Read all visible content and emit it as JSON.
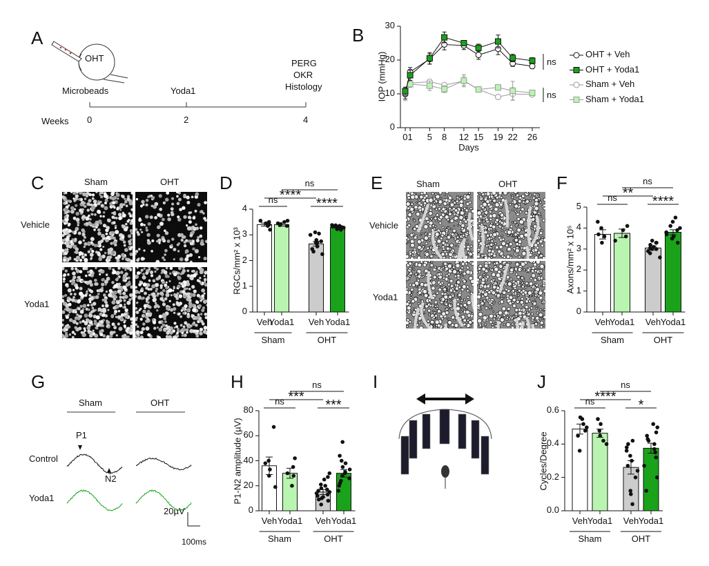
{
  "panels": {
    "A": "A",
    "B": "B",
    "C": "C",
    "D": "D",
    "E": "E",
    "F": "F",
    "G": "G",
    "H": "H",
    "I": "I",
    "J": "J"
  },
  "timeline": {
    "eye_label": "OHT",
    "events": [
      "Microbeads",
      "Yoda1"
    ],
    "endpoints": [
      "PERG",
      "OKR",
      "Histology"
    ],
    "axis_label": "Weeks",
    "ticks": [
      "0",
      "2",
      "4"
    ]
  },
  "micro_c": {
    "cols": [
      "Sham",
      "OHT"
    ],
    "rows": [
      "Vehicle",
      "Yoda1"
    ]
  },
  "micro_e": {
    "cols": [
      "Sham",
      "OHT"
    ],
    "rows": [
      "Vehicle",
      "Yoda1"
    ]
  },
  "perg": {
    "cols": [
      "Sham",
      "OHT"
    ],
    "rows": [
      "Control",
      "Yoda1"
    ],
    "p1": "P1",
    "n2": "N2",
    "scale_v": "20µV",
    "scale_t": "100ms"
  },
  "colors": {
    "black": "#111111",
    "green": "#1aa31a",
    "light_green": "#b9f5b0",
    "gray": "#cccccc"
  },
  "chart_data": [
    {
      "id": "B",
      "type": "line",
      "ylabel": "IOP (mmHg)",
      "xlabel": "Days",
      "ylim": [
        0,
        30
      ],
      "yticks": [
        "0",
        "10",
        "20",
        "30"
      ],
      "xticks": [
        "01",
        "5",
        "8",
        "12",
        "15",
        "19",
        "22",
        "26"
      ],
      "x": [
        0,
        1,
        5,
        8,
        12,
        15,
        19,
        22,
        26
      ],
      "series": [
        {
          "name": "OHT + Veh",
          "marker": "circle",
          "color": "#111111",
          "fill": "#ffffff",
          "values": [
            10,
            16.5,
            20.3,
            24.6,
            24.3,
            21.5,
            23.3,
            19,
            18.2
          ],
          "err": [
            1.5,
            1.3,
            1.5,
            1.6,
            1.2,
            1.3,
            1.7,
            0.9,
            0.7
          ]
        },
        {
          "name": "OHT + Yoda1",
          "marker": "square",
          "color": "#111111",
          "fill": "#1aa31a",
          "values": [
            10.8,
            15.5,
            20.5,
            26.7,
            25,
            23.6,
            25.5,
            20.6,
            19.8
          ],
          "err": [
            1.2,
            1.5,
            1.7,
            1.6,
            0.8,
            1.1,
            1.9,
            1.1,
            0.9
          ]
        },
        {
          "name": "Sham + Veh",
          "marker": "circle",
          "color": "#999999",
          "fill": "#ffffff",
          "values": [
            9.8,
            13.2,
            13.6,
            12.6,
            13.8,
            11.3,
            9.1,
            10,
            9.8
          ],
          "err": [
            1.8,
            0.6,
            0.4,
            0.6,
            1.3,
            0.6,
            0.5,
            1.8,
            0.5
          ]
        },
        {
          "name": "Sham + Yoda1",
          "marker": "square",
          "color": "#999999",
          "fill": "#b9f5b0",
          "values": [
            10.5,
            12.9,
            12.4,
            11.4,
            13.9,
            11.3,
            11.9,
            10.9,
            10.3
          ],
          "err": [
            1.3,
            1,
            1.4,
            1,
            1.8,
            0.7,
            0.7,
            2.8,
            0.6
          ]
        }
      ],
      "annotations": [
        "ns",
        "ns"
      ]
    },
    {
      "id": "D",
      "type": "bar",
      "ylabel": "RGCs/mm² x 10³",
      "ylim": [
        0,
        4
      ],
      "yticks": [
        "0",
        "1",
        "2",
        "3",
        "4"
      ],
      "categories": [
        "Veh",
        "Yoda1",
        "Veh",
        "Yoda1"
      ],
      "groups": [
        "Sham",
        "OHT"
      ],
      "values": [
        3.4,
        3.4,
        2.65,
        3.3
      ],
      "err": [
        0.06,
        0.06,
        0.09,
        0.03
      ],
      "points": [
        [
          3.2,
          3.35,
          3.4,
          3.45,
          3.5,
          3.55
        ],
        [
          3.35,
          3.38,
          3.42,
          3.45,
          3.5,
          3.55
        ],
        [
          2.25,
          2.35,
          2.45,
          2.55,
          2.65,
          2.7,
          2.7,
          2.75,
          2.8,
          3.0,
          3.05,
          3.1
        ],
        [
          3.2,
          3.22,
          3.25,
          3.28,
          3.3,
          3.3,
          3.32,
          3.33,
          3.35,
          3.35,
          3.37,
          3.38
        ]
      ],
      "comparisons": [
        {
          "a": 0,
          "b": 1,
          "label": "ns",
          "level": 0
        },
        {
          "a": 0,
          "b": 2,
          "label": "****",
          "level": 1
        },
        {
          "a": 2,
          "b": 3,
          "label": "****",
          "level": 0
        },
        {
          "a": 1,
          "b": 3,
          "label": "ns",
          "level": 2
        }
      ]
    },
    {
      "id": "F",
      "type": "bar",
      "ylabel": "Axons/mm² x 10⁵",
      "ylim": [
        0,
        5
      ],
      "yticks": [
        "0",
        "1",
        "2",
        "3",
        "4",
        "5"
      ],
      "categories": [
        "Veh",
        "Yoda1",
        "Veh",
        "Yoda1"
      ],
      "groups": [
        "Sham",
        "OHT"
      ],
      "values": [
        3.7,
        3.75,
        3.05,
        3.8
      ],
      "err": [
        0.22,
        0.2,
        0.1,
        0.12
      ],
      "points": [
        [
          3.3,
          3.6,
          3.7,
          4.0,
          4.3
        ],
        [
          3.4,
          3.6,
          3.9,
          4.1
        ],
        [
          2.6,
          2.8,
          2.9,
          3.0,
          3.0,
          3.05,
          3.1,
          3.2,
          3.3,
          3.3,
          3.4
        ],
        [
          3.3,
          3.5,
          3.6,
          3.7,
          3.75,
          3.8,
          3.9,
          4.0,
          4.1,
          4.3,
          4.5
        ]
      ],
      "comparisons": [
        {
          "a": 0,
          "b": 1,
          "label": "ns",
          "level": 0
        },
        {
          "a": 0,
          "b": 2,
          "label": "**",
          "level": 1
        },
        {
          "a": 2,
          "b": 3,
          "label": "****",
          "level": 0
        },
        {
          "a": 1,
          "b": 3,
          "label": "ns",
          "level": 2
        }
      ]
    },
    {
      "id": "H",
      "type": "bar",
      "ylabel": "P1-N2 amplitude (µV)",
      "ylim": [
        0,
        80
      ],
      "yticks": [
        "0",
        "20",
        "40",
        "60",
        "80"
      ],
      "categories": [
        "Veh",
        "Yoda1",
        "Veh",
        "Yoda1"
      ],
      "groups": [
        "Sham",
        "OHT"
      ],
      "values": [
        36,
        30,
        15,
        30
      ],
      "err": [
        7,
        4,
        2,
        3
      ],
      "points": [
        [
          19,
          28,
          33,
          38,
          40,
          67
        ],
        [
          20,
          28,
          30,
          35,
          42
        ],
        [
          5,
          8,
          9,
          10,
          11,
          12,
          13,
          14,
          15,
          16,
          17,
          18,
          20,
          21,
          25,
          27,
          30
        ],
        [
          16,
          20,
          22,
          24,
          26,
          28,
          30,
          31,
          33,
          35,
          38,
          40,
          44,
          55
        ]
      ],
      "comparisons": [
        {
          "a": 0,
          "b": 1,
          "label": "ns",
          "level": 0
        },
        {
          "a": 0,
          "b": 2,
          "label": "***",
          "level": 1
        },
        {
          "a": 2,
          "b": 3,
          "label": "***",
          "level": 0
        },
        {
          "a": 1,
          "b": 3,
          "label": "ns",
          "level": 2
        }
      ]
    },
    {
      "id": "J",
      "type": "bar",
      "ylabel": "Cycles/Degree",
      "ylim": [
        0,
        0.6
      ],
      "yticks": [
        "0.0",
        "0.2",
        "0.4",
        "0.6"
      ],
      "categories": [
        "Veh",
        "Yoda1",
        "Veh",
        "Yoda1"
      ],
      "groups": [
        "Sham",
        "OHT"
      ],
      "values": [
        0.49,
        0.465,
        0.26,
        0.375
      ],
      "err": [
        0.03,
        0.025,
        0.04,
        0.03
      ],
      "points": [
        [
          0.36,
          0.45,
          0.48,
          0.5,
          0.52,
          0.55,
          0.56
        ],
        [
          0.4,
          0.42,
          0.45,
          0.48,
          0.52,
          0.55
        ],
        [
          0.04,
          0.1,
          0.12,
          0.2,
          0.24,
          0.27,
          0.3,
          0.33,
          0.36,
          0.38,
          0.4,
          0.42
        ],
        [
          0.12,
          0.2,
          0.27,
          0.32,
          0.35,
          0.37,
          0.4,
          0.42,
          0.43,
          0.45,
          0.47,
          0.5,
          0.52
        ]
      ],
      "comparisons": [
        {
          "a": 0,
          "b": 1,
          "label": "ns",
          "level": 0
        },
        {
          "a": 0,
          "b": 2,
          "label": "****",
          "level": 1
        },
        {
          "a": 2,
          "b": 3,
          "label": "*",
          "level": 0
        },
        {
          "a": 1,
          "b": 3,
          "label": "ns",
          "level": 2
        }
      ]
    }
  ]
}
